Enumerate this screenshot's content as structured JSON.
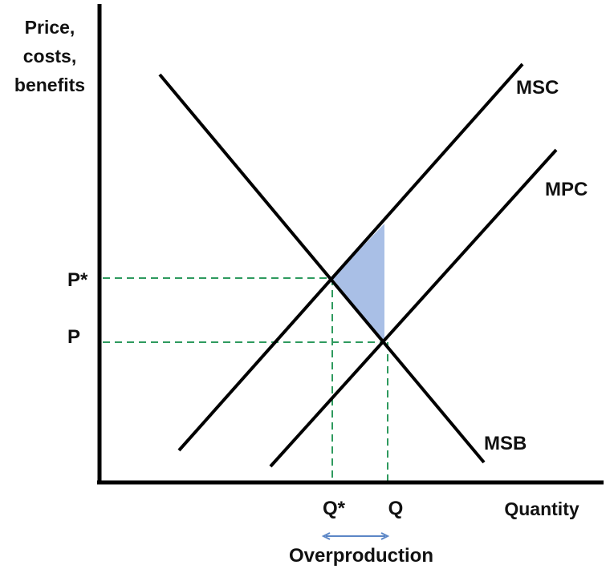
{
  "diagram": {
    "y_axis_label": [
      "Price,",
      "costs,",
      "benefits"
    ],
    "x_axis_label": "Quantity",
    "curves": {
      "msc": "MSC",
      "mpc": "MPC",
      "msb": "MSB"
    },
    "price_labels": {
      "p_star": "P*",
      "p": "P"
    },
    "quantity_labels": {
      "q_star": "Q*",
      "q": "Q"
    },
    "overproduction_label": "Overproduction",
    "colors": {
      "curve": "#000000",
      "guide_line": "#2e9a5e",
      "deadweight_fill": "#a9bfe6",
      "arrow": "#5b86c6"
    }
  }
}
